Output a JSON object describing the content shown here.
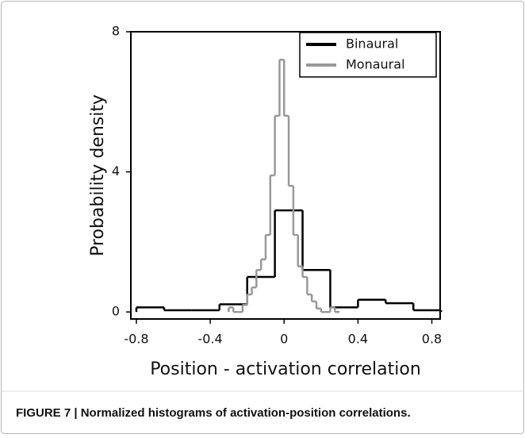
{
  "chart_data": {
    "type": "histogram",
    "x_label": "Position - activation correlation",
    "y_label": "Probability density",
    "caption": "FIGURE 7 | Normalized histograms of activation-position correlations.",
    "xlim": [
      -0.83,
      0.845
    ],
    "ylim": [
      -0.2,
      8
    ],
    "xticks": [
      -0.8,
      -0.4,
      0,
      0.4,
      0.8
    ],
    "yticks": [
      0,
      4,
      8
    ],
    "legend": "upper right",
    "series": [
      {
        "name": "Binaural",
        "color": "#000000",
        "bins": [
          -0.8,
          -0.65,
          -0.5,
          -0.35,
          -0.2,
          -0.05,
          0.1,
          0.25,
          0.4,
          0.55,
          0.7,
          0.85
        ],
        "values": [
          0.13,
          0.05,
          0.05,
          0.22,
          1.0,
          2.9,
          1.2,
          0.13,
          0.35,
          0.25,
          0.05
        ]
      },
      {
        "name": "Monaural",
        "color": "#999999",
        "bins": [
          -0.3,
          -0.275,
          -0.25,
          -0.225,
          -0.2,
          -0.175,
          -0.15,
          -0.125,
          -0.1,
          -0.075,
          -0.05,
          -0.025,
          0,
          0.025,
          0.05,
          0.075,
          0.1,
          0.125,
          0.15,
          0.175,
          0.2,
          0.225,
          0.25,
          0.275,
          0.3
        ],
        "values": [
          0.13,
          0,
          0,
          0.2,
          0.5,
          0.7,
          1.2,
          1.5,
          2.2,
          3.9,
          5.6,
          7.2,
          5.6,
          3.6,
          2.2,
          1.3,
          1.0,
          0.5,
          0.3,
          0.1,
          0,
          0,
          0.13,
          0
        ]
      }
    ]
  }
}
